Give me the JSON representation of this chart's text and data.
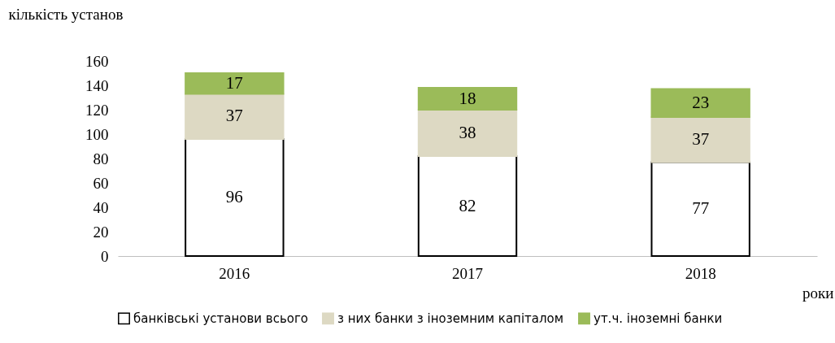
{
  "chart_data": {
    "type": "bar",
    "stacked": true,
    "ylabel": "кількість установ",
    "xlabel": "роки",
    "categories": [
      "2016",
      "2017",
      "2018"
    ],
    "series": [
      {
        "name": "банківські установи всього",
        "color": "#ffffff",
        "values": [
          96,
          82,
          77
        ]
      },
      {
        "name": "з них банки з іноземним капіталом",
        "color": "#ddd9c3",
        "values": [
          37,
          38,
          37
        ]
      },
      {
        "name": "ут.ч. іноземні банки",
        "color": "#9bbb59",
        "values": [
          17,
          18,
          23
        ]
      }
    ],
    "ylim": [
      0,
      160
    ],
    "yticks": [
      0,
      20,
      40,
      60,
      80,
      100,
      120,
      140,
      160
    ],
    "data_labels": true,
    "grid": false,
    "legend": "bottom"
  }
}
